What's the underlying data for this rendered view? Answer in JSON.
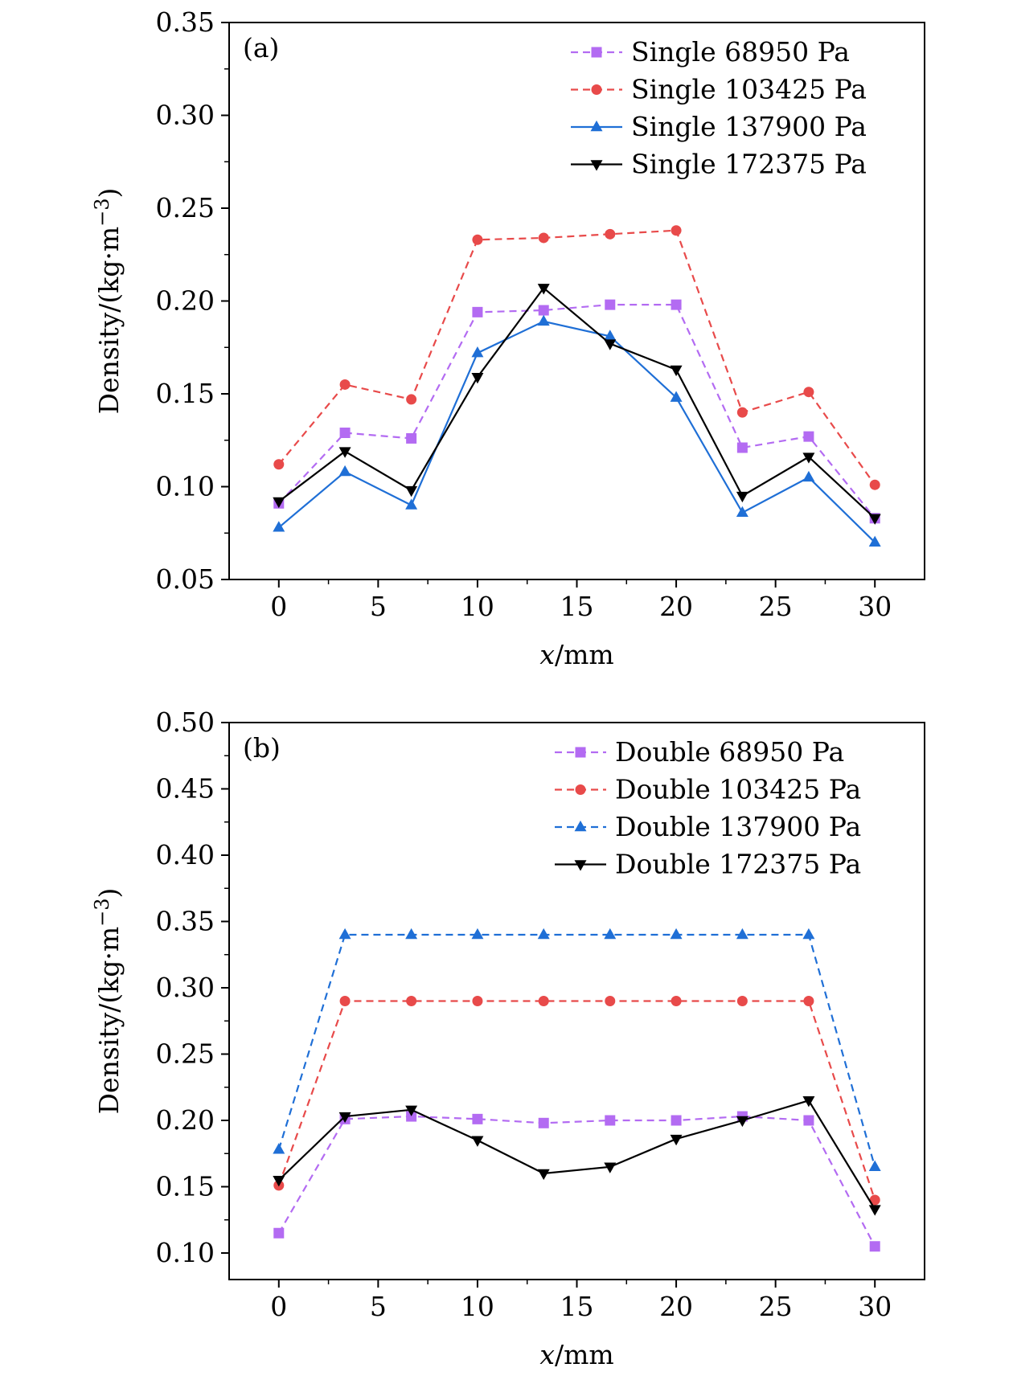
{
  "chart_data": [
    {
      "type": "line",
      "panel_label": "(a)",
      "xlabel_var": "x",
      "xlabel_unit": "/mm",
      "ylabel": "Density/(kg·m",
      "ylabel_sup": "−3",
      "ylabel_close": ")",
      "xlim": [
        -2.5,
        32.5
      ],
      "ylim": [
        0.05,
        0.35
      ],
      "xticks": [
        0,
        5,
        10,
        15,
        20,
        25,
        30
      ],
      "yticks": [
        0.05,
        0.1,
        0.15,
        0.2,
        0.25,
        0.3,
        0.35
      ],
      "ytick_decimals": 2,
      "x": [
        0,
        3.33,
        6.67,
        10,
        13.33,
        16.67,
        20,
        23.33,
        26.67,
        30
      ],
      "legend_position": "top-right",
      "series": [
        {
          "name": "Single 68950 Pa",
          "color": "#b36bf2",
          "dashed": true,
          "marker": "square",
          "values": [
            0.091,
            0.129,
            0.126,
            0.194,
            0.195,
            0.198,
            0.198,
            0.121,
            0.127,
            0.083
          ]
        },
        {
          "name": "Single 103425 Pa",
          "color": "#e84a4a",
          "dashed": true,
          "marker": "circle",
          "values": [
            0.112,
            0.155,
            0.147,
            0.233,
            0.234,
            0.236,
            0.238,
            0.14,
            0.151,
            0.101
          ]
        },
        {
          "name": "Single 137900 Pa",
          "color": "#1f6fd6",
          "dashed": false,
          "marker": "triangle-up",
          "values": [
            0.078,
            0.108,
            0.09,
            0.172,
            0.189,
            0.181,
            0.148,
            0.086,
            0.105,
            0.07
          ]
        },
        {
          "name": "Single 172375 Pa",
          "color": "#000000",
          "dashed": false,
          "marker": "triangle-down",
          "values": [
            0.092,
            0.119,
            0.098,
            0.159,
            0.207,
            0.177,
            0.163,
            0.095,
            0.116,
            0.083
          ]
        }
      ]
    },
    {
      "type": "line",
      "panel_label": "(b)",
      "xlabel_var": "x",
      "xlabel_unit": "/mm",
      "ylabel": "Density/(kg·m",
      "ylabel_sup": "−3",
      "ylabel_close": ")",
      "xlim": [
        -2.5,
        32.5
      ],
      "ylim": [
        0.08,
        0.5
      ],
      "xticks": [
        0,
        5,
        10,
        15,
        20,
        25,
        30
      ],
      "yticks": [
        0.1,
        0.15,
        0.2,
        0.25,
        0.3,
        0.35,
        0.4,
        0.45,
        0.5
      ],
      "ytick_decimals": 2,
      "x": [
        0,
        3.33,
        6.67,
        10,
        13.33,
        16.67,
        20,
        23.33,
        26.67,
        30
      ],
      "legend_position": "top-right",
      "series": [
        {
          "name": "Double 68950 Pa",
          "color": "#b36bf2",
          "dashed": true,
          "marker": "square",
          "values": [
            0.115,
            0.201,
            0.203,
            0.201,
            0.198,
            0.2,
            0.2,
            0.203,
            0.2,
            0.105
          ]
        },
        {
          "name": "Double 103425 Pa",
          "color": "#e84a4a",
          "dashed": true,
          "marker": "circle",
          "values": [
            0.151,
            0.29,
            0.29,
            0.29,
            0.29,
            0.29,
            0.29,
            0.29,
            0.29,
            0.14
          ]
        },
        {
          "name": "Double 137900 Pa",
          "color": "#1f6fd6",
          "dashed": true,
          "marker": "triangle-up",
          "values": [
            0.178,
            0.34,
            0.34,
            0.34,
            0.34,
            0.34,
            0.34,
            0.34,
            0.34,
            0.165
          ]
        },
        {
          "name": "Double 172375 Pa",
          "color": "#000000",
          "dashed": false,
          "marker": "triangle-down",
          "values": [
            0.155,
            0.203,
            0.208,
            0.185,
            0.16,
            0.165,
            0.186,
            0.2,
            0.215,
            0.133
          ]
        }
      ]
    }
  ]
}
